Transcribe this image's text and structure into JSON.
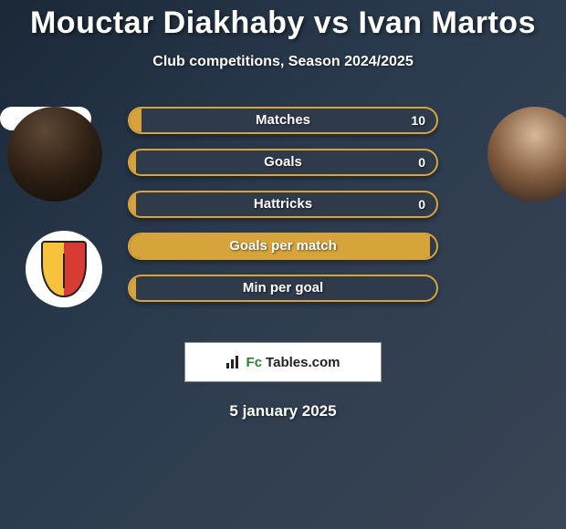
{
  "title": "Mouctar Diakhaby vs Ivan Martos",
  "subtitle": "Club competitions, Season 2024/2025",
  "date": "5 january 2025",
  "brand": {
    "fc": "Fc",
    "tables": "Tables.com"
  },
  "colors": {
    "pill_border": "#d7a43b",
    "pill_fill": "#d7a43b",
    "pill_bg": "#2f3b4b",
    "title_color": "#ffffff",
    "bg_gradient_from": "#1a2838",
    "bg_gradient_to": "#3a4555",
    "brand_fc": "#2e7d32",
    "brand_tables": "#222222"
  },
  "stats": [
    {
      "label": "Matches",
      "value": "10",
      "fill_pct": 4
    },
    {
      "label": "Goals",
      "value": "0",
      "fill_pct": 2
    },
    {
      "label": "Hattricks",
      "value": "0",
      "fill_pct": 2
    },
    {
      "label": "Goals per match",
      "value": "",
      "fill_pct": 98
    },
    {
      "label": "Min per goal",
      "value": "",
      "fill_pct": 2
    }
  ],
  "left_player_name": "Mouctar Diakhaby",
  "right_player_name": "Ivan Martos",
  "left_club": "Valencia CF",
  "right_club": ""
}
